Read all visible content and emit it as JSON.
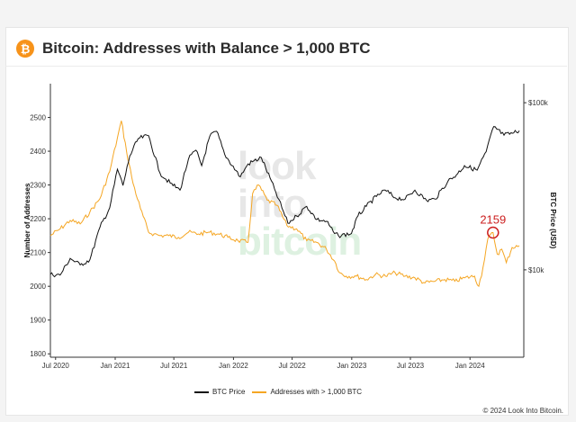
{
  "header": {
    "logo_glyph": "₿",
    "title": "Bitcoin: Addresses with Balance > 1,000 BTC"
  },
  "watermark": {
    "line1": "look",
    "line2": "into",
    "line3": "bitcoin"
  },
  "copyright": "© 2024 Look Into Bitcoin.",
  "chart_data": {
    "type": "line",
    "ylabel": "Number of Addresses",
    "y2label": "BTC Price (USD)",
    "ylim": [
      1790,
      2600
    ],
    "y2_ticks": [
      "$10k",
      "$100k"
    ],
    "y2_scale": "log",
    "y2_ticks_vals": [
      10000,
      100000
    ],
    "y2lim": [
      3000,
      130000
    ],
    "xlim": [
      "2020-06-15",
      "2024-06-15"
    ],
    "xticks": [
      "Jul 2020",
      "Jan 2021",
      "Jul 2021",
      "Jan 2022",
      "Jul 2022",
      "Jan 2023",
      "Jul 2023",
      "Jan 2024"
    ],
    "xticks_dates": [
      "2020-07-01",
      "2021-01-01",
      "2021-07-01",
      "2022-01-01",
      "2022-07-01",
      "2023-01-01",
      "2023-07-01",
      "2024-01-01"
    ],
    "yticks": [
      1800,
      1900,
      2000,
      2100,
      2200,
      2300,
      2400,
      2500
    ],
    "grid": false,
    "legend_position": "bottom",
    "colors": {
      "price": "#111111",
      "addresses": "#f5a623",
      "annotation": "#cc1f1f"
    },
    "annotation": {
      "label": "2159",
      "date": "2024-03-12",
      "value": 2159
    },
    "series": [
      {
        "name": "BTC Price",
        "axis": "right",
        "dates": [
          "2020-06-15",
          "2020-07-15",
          "2020-08-15",
          "2020-09-15",
          "2020-10-15",
          "2020-11-15",
          "2020-12-15",
          "2021-01-08",
          "2021-01-25",
          "2021-02-15",
          "2021-03-13",
          "2021-04-14",
          "2021-05-19",
          "2021-06-20",
          "2021-07-20",
          "2021-08-15",
          "2021-09-07",
          "2021-09-25",
          "2021-10-20",
          "2021-11-10",
          "2021-12-05",
          "2022-01-22",
          "2022-02-15",
          "2022-03-28",
          "2022-05-12",
          "2022-06-18",
          "2022-07-15",
          "2022-08-15",
          "2022-09-15",
          "2022-10-15",
          "2022-11-09",
          "2022-11-21",
          "2022-12-31",
          "2023-01-20",
          "2023-02-15",
          "2023-03-18",
          "2023-04-14",
          "2023-05-15",
          "2023-06-15",
          "2023-07-15",
          "2023-08-20",
          "2023-09-15",
          "2023-10-25",
          "2023-11-20",
          "2023-12-15",
          "2024-01-23",
          "2024-02-20",
          "2024-03-14",
          "2024-04-15",
          "2024-05-15",
          "2024-06-01"
        ],
        "values": [
          9400,
          9300,
          11700,
          10700,
          11500,
          18000,
          23500,
          40000,
          32000,
          48000,
          61000,
          63500,
          38000,
          33000,
          30000,
          46000,
          52000,
          42000,
          63000,
          67500,
          49000,
          36000,
          43000,
          47000,
          29000,
          19000,
          21000,
          24000,
          20000,
          19500,
          16500,
          16000,
          16500,
          21000,
          24000,
          27500,
          30000,
          27000,
          26500,
          30000,
          26000,
          26500,
          34000,
          37000,
          42000,
          39500,
          51000,
          72000,
          64000,
          66000,
          68000
        ]
      },
      {
        "name": "Addresses with > 1,000 BTC",
        "axis": "left",
        "dates": [
          "2020-06-15",
          "2020-07-15",
          "2020-08-15",
          "2020-09-15",
          "2020-10-15",
          "2020-11-15",
          "2020-12-15",
          "2021-01-08",
          "2021-01-20",
          "2021-02-05",
          "2021-02-25",
          "2021-03-20",
          "2021-04-14",
          "2021-05-01",
          "2021-05-19",
          "2021-06-15",
          "2021-07-15",
          "2021-08-15",
          "2021-09-15",
          "2021-10-15",
          "2021-11-15",
          "2021-12-15",
          "2022-01-15",
          "2022-02-15",
          "2022-03-01",
          "2022-03-20",
          "2022-04-15",
          "2022-05-15",
          "2022-06-15",
          "2022-07-15",
          "2022-08-15",
          "2022-09-15",
          "2022-10-15",
          "2022-11-09",
          "2022-11-25",
          "2022-12-15",
          "2023-01-15",
          "2023-02-15",
          "2023-03-15",
          "2023-04-15",
          "2023-05-15",
          "2023-06-15",
          "2023-07-15",
          "2023-08-15",
          "2023-09-15",
          "2023-10-15",
          "2023-11-15",
          "2023-12-15",
          "2024-01-15",
          "2024-01-28",
          "2024-02-10",
          "2024-02-25",
          "2024-03-12",
          "2024-03-25",
          "2024-04-08",
          "2024-04-22",
          "2024-05-10",
          "2024-06-01"
        ],
        "values": [
          2150,
          2170,
          2195,
          2185,
          2220,
          2260,
          2340,
          2440,
          2490,
          2400,
          2305,
          2230,
          2160,
          2155,
          2150,
          2150,
          2145,
          2160,
          2155,
          2160,
          2155,
          2145,
          2135,
          2130,
          2275,
          2300,
          2255,
          2240,
          2180,
          2170,
          2135,
          2130,
          2110,
          2075,
          2040,
          2030,
          2030,
          2020,
          2035,
          2030,
          2040,
          2030,
          2025,
          2010,
          2015,
          2020,
          2015,
          2025,
          2030,
          2000,
          2055,
          2140,
          2159,
          2095,
          2110,
          2070,
          2115,
          2120
        ]
      }
    ]
  }
}
